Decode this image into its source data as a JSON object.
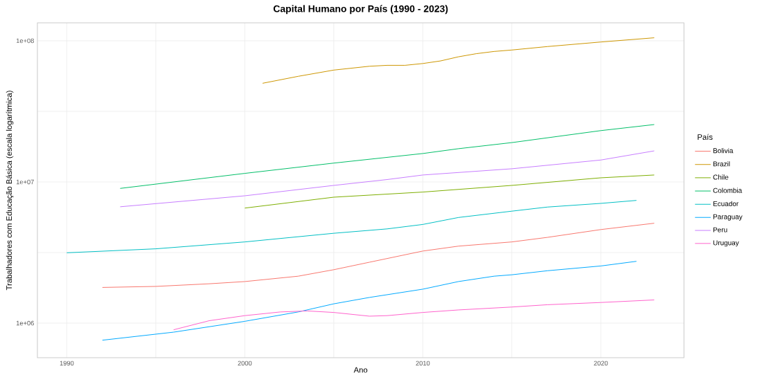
{
  "chart_data": {
    "type": "line",
    "title": "Capital Humano por País (1990 - 2023)",
    "xlabel": "Ano",
    "ylabel": "Trabalhadores com Educação Básica (escala logarítmica)",
    "legend_title": "País",
    "legend": "right",
    "log": "y",
    "grid": true,
    "line_style": "solid",
    "marker": "none",
    "xlim": [
      1988.35,
      2024.67
    ],
    "ylim": [
      569000,
      134000000
    ],
    "xticks": [
      1990,
      {
        "value": 1995,
        "label": null
      },
      2000,
      {
        "value": 2005,
        "label": null
      },
      2010,
      {
        "value": 2015,
        "label": null
      },
      2020
    ],
    "yticks": [
      {
        "value": 1000000,
        "label": "1e+06"
      },
      {
        "value": 3162278,
        "label": null
      },
      {
        "value": 10000000,
        "label": "1e+07"
      },
      {
        "value": 31622777,
        "label": null
      },
      {
        "value": 100000000,
        "label": "1e+08"
      }
    ],
    "series": [
      {
        "name": "Bolivia",
        "color": "#f8766d",
        "x": [
          1992,
          1995,
          1998,
          2000,
          2003,
          2005,
          2007,
          2010,
          2012,
          2015,
          2017,
          2020,
          2023
        ],
        "values": [
          1790000,
          1820000,
          1900000,
          1970000,
          2150000,
          2390000,
          2700000,
          3240000,
          3510000,
          3760000,
          4050000,
          4600000,
          5100000
        ]
      },
      {
        "name": "Brazil",
        "color": "#cd9600",
        "x": [
          2001,
          2003,
          2005,
          2007,
          2008,
          2009,
          2010,
          2011,
          2012,
          2013,
          2014,
          2015,
          2017,
          2020,
          2023
        ],
        "values": [
          50000000,
          56000000,
          62000000,
          66000000,
          67000000,
          67000000,
          69000000,
          72000000,
          77000000,
          81000000,
          84000000,
          86000000,
          91000000,
          98000000,
          105000000
        ]
      },
      {
        "name": "Chile",
        "color": "#7cae00",
        "x": [
          2000,
          2005,
          2010,
          2015,
          2020,
          2023
        ],
        "values": [
          6530000,
          7800000,
          8480000,
          9450000,
          10700000,
          11200000
        ]
      },
      {
        "name": "Colombia",
        "color": "#00be67",
        "x": [
          1993,
          2000,
          2005,
          2010,
          2012,
          2015,
          2020,
          2023
        ],
        "values": [
          9000000,
          11500000,
          13600000,
          15900000,
          17200000,
          19000000,
          23100000,
          25500000
        ]
      },
      {
        "name": "Ecuador",
        "color": "#00bfc4",
        "x": [
          1990,
          1995,
          2000,
          2005,
          2008,
          2010,
          2012,
          2015,
          2017,
          2020,
          2022
        ],
        "values": [
          3150000,
          3360000,
          3760000,
          4330000,
          4650000,
          5000000,
          5600000,
          6210000,
          6640000,
          7050000,
          7400000
        ]
      },
      {
        "name": "Paraguay",
        "color": "#00a9ff",
        "x": [
          1992,
          1996,
          2000,
          2003,
          2005,
          2007,
          2010,
          2012,
          2014,
          2015,
          2017,
          2020,
          2022
        ],
        "values": [
          757000,
          863000,
          1030000,
          1200000,
          1370000,
          1520000,
          1740000,
          1970000,
          2150000,
          2200000,
          2350000,
          2540000,
          2740000
        ]
      },
      {
        "name": "Peru",
        "color": "#c77cff",
        "x": [
          1993,
          2000,
          2005,
          2008,
          2010,
          2015,
          2020,
          2023
        ],
        "values": [
          6670000,
          7980000,
          9450000,
          10400000,
          11200000,
          12400000,
          14300000,
          16600000
        ]
      },
      {
        "name": "Uruguay",
        "color": "#ff61cc",
        "x": [
          1996,
          1998,
          2000,
          2002,
          2003.5,
          2005,
          2007,
          2008,
          2010,
          2012,
          2015,
          2017,
          2020,
          2023
        ],
        "values": [
          897000,
          1040000,
          1130000,
          1200000,
          1220000,
          1190000,
          1120000,
          1130000,
          1190000,
          1240000,
          1300000,
          1350000,
          1400000,
          1460000
        ]
      }
    ]
  }
}
